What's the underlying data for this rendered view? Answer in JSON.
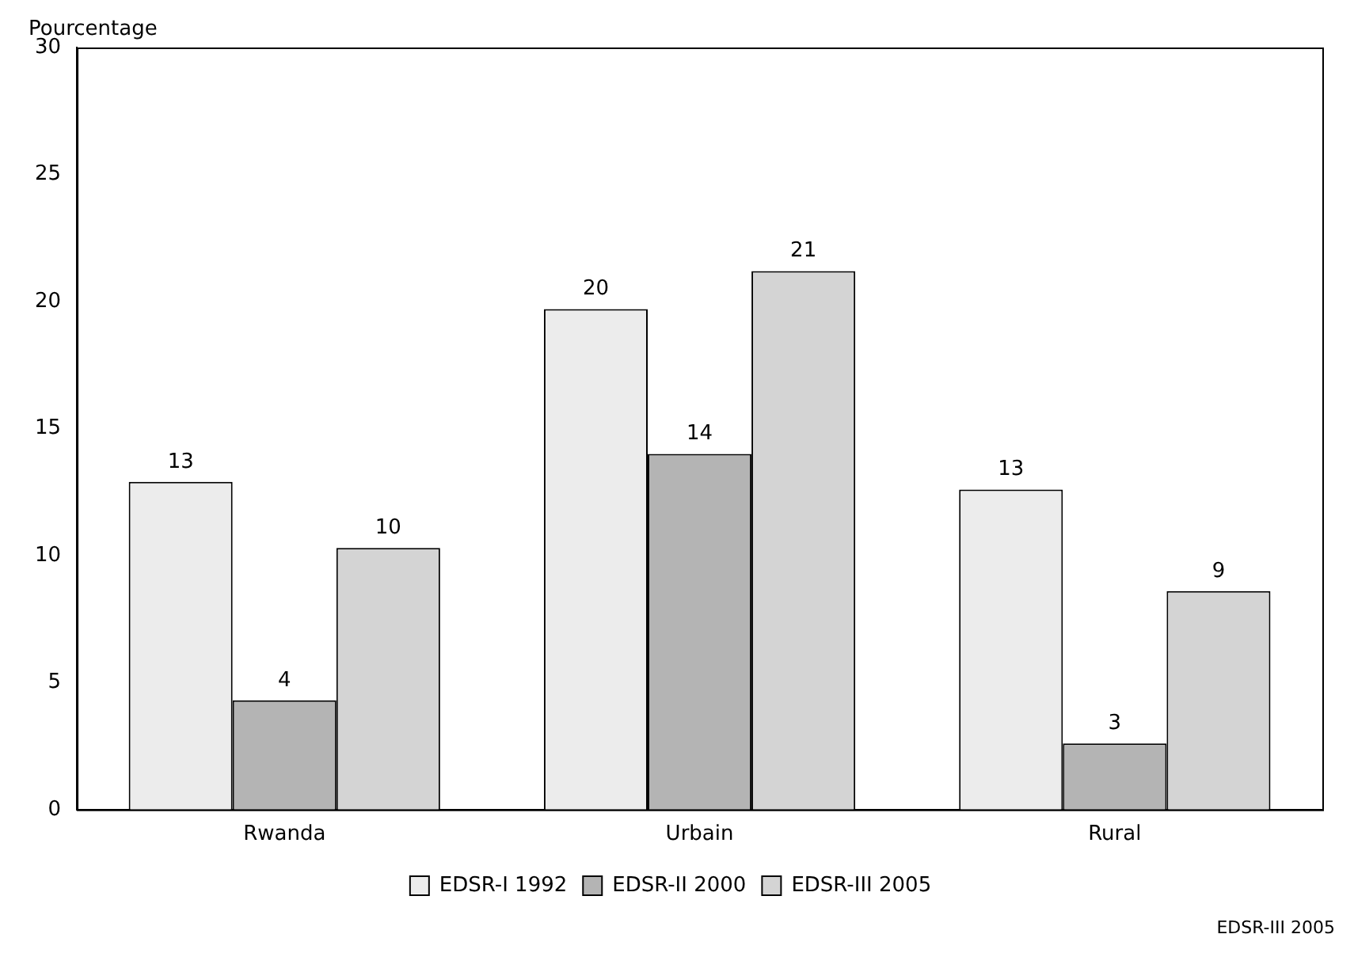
{
  "chart_data": {
    "type": "bar",
    "ylabel": "Pourcentage",
    "categories": [
      "Rwanda",
      "Urbain",
      "Rural"
    ],
    "series": [
      {
        "name": "EDSR-I 1992",
        "color": "#ececec",
        "values": [
          12.9,
          19.7,
          12.6
        ],
        "value_labels": [
          "13",
          "20",
          "13"
        ]
      },
      {
        "name": "EDSR-II 2000",
        "color": "#b4b4b4",
        "values": [
          4.3,
          14.0,
          2.6
        ],
        "value_labels": [
          "4",
          "14",
          "3"
        ]
      },
      {
        "name": "EDSR-III 2005",
        "color": "#d4d4d4",
        "values": [
          10.3,
          21.2,
          8.6
        ],
        "value_labels": [
          "10",
          "21",
          "9"
        ]
      }
    ],
    "ylim": [
      0,
      30
    ],
    "yticks": [
      0,
      5,
      10,
      15,
      20,
      25,
      30
    ],
    "grid": false,
    "legend": "bottom",
    "annotations": [
      "EDSR-III 2005"
    ]
  }
}
